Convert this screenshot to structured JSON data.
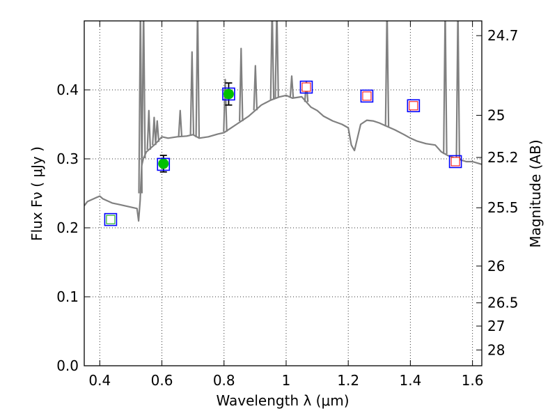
{
  "chart_data": {
    "type": "scatter",
    "xlabel": "Wavelength  λ (μm)",
    "ylabel": "Flux  Fν ( μJy )",
    "ylabel_right": "Magnitude (AB)",
    "xlim": [
      0.35,
      1.63
    ],
    "ylim": [
      0.0,
      0.5
    ],
    "grid": true,
    "x_ticks": [
      {
        "value": 0.4,
        "label": "0.4"
      },
      {
        "value": 0.6,
        "label": "0.6"
      },
      {
        "value": 0.8,
        "label": "0.8"
      },
      {
        "value": 1.0,
        "label": "1"
      },
      {
        "value": 1.2,
        "label": "1.2"
      },
      {
        "value": 1.4,
        "label": "1.4"
      },
      {
        "value": 1.6,
        "label": "1.6"
      }
    ],
    "y_ticks": [
      {
        "value": 0.0,
        "label": "0.0"
      },
      {
        "value": 0.1,
        "label": "0.1"
      },
      {
        "value": 0.2,
        "label": "0.2"
      },
      {
        "value": 0.3,
        "label": "0.3"
      },
      {
        "value": 0.4,
        "label": "0.4"
      }
    ],
    "right_ticks": [
      {
        "value": 24.7,
        "label": "24.7"
      },
      {
        "value": 25.0,
        "label": "25"
      },
      {
        "value": 25.2,
        "label": "25.2"
      },
      {
        "value": 25.5,
        "label": "25.5"
      },
      {
        "value": 26.0,
        "label": "26"
      },
      {
        "value": 26.5,
        "label": "26.5"
      },
      {
        "value": 27.0,
        "label": "27"
      },
      {
        "value": 28.0,
        "label": "28"
      }
    ],
    "series": [
      {
        "kind": "model_spectrum",
        "color": "#808080",
        "x": [
          0.35,
          0.36,
          0.37,
          0.38,
          0.39,
          0.4,
          0.41,
          0.42,
          0.44,
          0.46,
          0.48,
          0.5,
          0.52,
          0.525,
          0.53,
          0.535,
          0.54,
          0.545,
          0.55,
          0.57,
          0.58,
          0.6,
          0.62,
          0.65,
          0.68,
          0.7,
          0.72,
          0.75,
          0.78,
          0.8,
          0.82,
          0.84,
          0.86,
          0.88,
          0.9,
          0.92,
          0.95,
          0.98,
          1.0,
          1.02,
          1.05,
          1.08,
          1.1,
          1.12,
          1.15,
          1.18,
          1.2,
          1.21,
          1.22,
          1.24,
          1.26,
          1.28,
          1.3,
          1.32,
          1.35,
          1.38,
          1.4,
          1.42,
          1.45,
          1.48,
          1.5,
          1.52,
          1.55,
          1.58,
          1.6,
          1.63
        ],
        "y": [
          0.232,
          0.238,
          0.24,
          0.242,
          0.244,
          0.246,
          0.242,
          0.24,
          0.236,
          0.234,
          0.232,
          0.23,
          0.228,
          0.21,
          0.24,
          0.29,
          0.3,
          0.305,
          0.31,
          0.318,
          0.322,
          0.332,
          0.33,
          0.332,
          0.333,
          0.335,
          0.33,
          0.332,
          0.336,
          0.338,
          0.344,
          0.35,
          0.356,
          0.362,
          0.37,
          0.378,
          0.385,
          0.39,
          0.392,
          0.388,
          0.39,
          0.375,
          0.37,
          0.362,
          0.355,
          0.35,
          0.345,
          0.32,
          0.312,
          0.35,
          0.356,
          0.355,
          0.352,
          0.348,
          0.342,
          0.335,
          0.33,
          0.326,
          0.322,
          0.32,
          0.31,
          0.305,
          0.3,
          0.296,
          0.296,
          0.292
        ]
      },
      {
        "kind": "emission_lines",
        "color": "#808080",
        "lines": [
          {
            "x": 0.531,
            "peak": 0.5
          },
          {
            "x": 0.541,
            "peak": 0.5
          },
          {
            "x": 0.558,
            "peak": 0.37
          },
          {
            "x": 0.575,
            "peak": 0.36
          },
          {
            "x": 0.585,
            "peak": 0.355
          },
          {
            "x": 0.659,
            "peak": 0.37
          },
          {
            "x": 0.697,
            "peak": 0.455
          },
          {
            "x": 0.715,
            "peak": 0.5
          },
          {
            "x": 0.804,
            "peak": 0.415
          },
          {
            "x": 0.855,
            "peak": 0.46
          },
          {
            "x": 0.901,
            "peak": 0.435
          },
          {
            "x": 0.955,
            "peak": 0.5
          },
          {
            "x": 0.97,
            "peak": 0.5
          },
          {
            "x": 1.018,
            "peak": 0.42
          },
          {
            "x": 1.065,
            "peak": 0.412
          },
          {
            "x": 1.325,
            "peak": 0.5
          },
          {
            "x": 1.512,
            "peak": 0.5
          },
          {
            "x": 1.553,
            "peak": 0.5
          }
        ]
      },
      {
        "kind": "model_band_flux",
        "marker": "square",
        "color": "#0000ff",
        "x": [
          0.435,
          0.605,
          0.815,
          1.065,
          1.26,
          1.41,
          1.545
        ],
        "y": [
          0.212,
          0.292,
          0.394,
          0.404,
          0.391,
          0.377,
          0.296
        ]
      },
      {
        "kind": "photometry_observed",
        "marker": "circle",
        "color": "#00c000",
        "x": [
          0.605,
          0.815
        ],
        "y": [
          0.293,
          0.394
        ],
        "yerr": [
          0.012,
          0.016
        ]
      },
      {
        "kind": "photometry_upper",
        "marker": "small-square",
        "color": "#ff0000",
        "x": [
          1.065,
          1.26,
          1.41,
          1.545
        ],
        "y": [
          0.404,
          0.391,
          0.377,
          0.296
        ]
      },
      {
        "kind": "photometry_faint",
        "marker": "small-square",
        "color": "#00aa00",
        "x": [
          0.435
        ],
        "y": [
          0.212
        ]
      }
    ]
  }
}
